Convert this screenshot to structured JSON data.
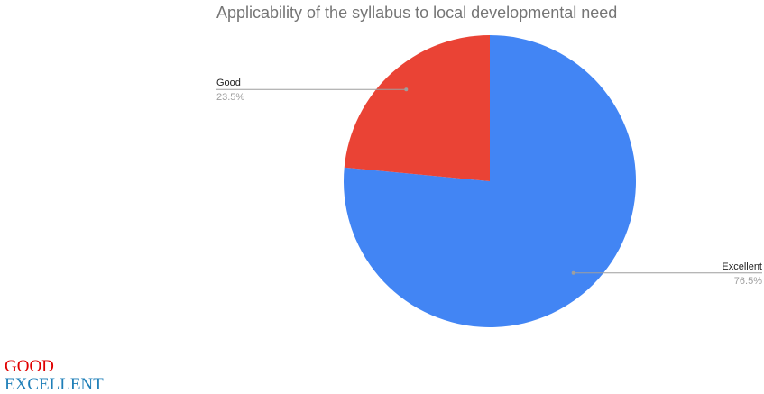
{
  "chart_data": {
    "type": "pie",
    "title": "Applicability of the syllabus to local developmental need",
    "slices": [
      {
        "label": "Excellent",
        "value": 76.5,
        "display": "76.5%",
        "color": "#4285f4"
      },
      {
        "label": "Good",
        "value": 23.5,
        "display": "23.5%",
        "color": "#ea4335"
      }
    ],
    "start_angle_deg": 0,
    "direction": "clockwise"
  },
  "legend": {
    "items": [
      {
        "text": "GOOD",
        "color": "#e00000"
      },
      {
        "text": "EXCELLENT",
        "color": "#1f7fb8"
      }
    ]
  }
}
